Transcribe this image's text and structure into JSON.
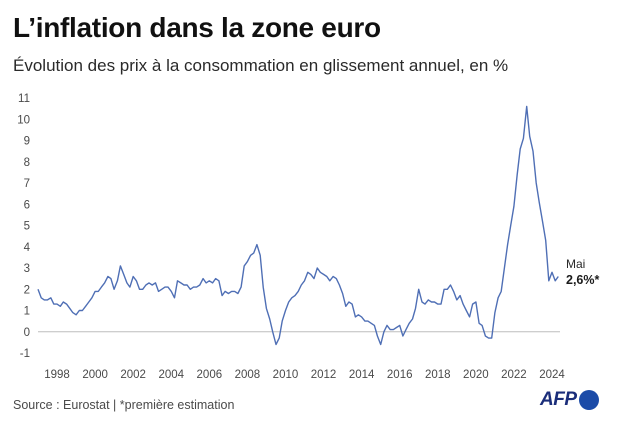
{
  "header": {
    "title": "L’inflation dans la zone euro",
    "subtitle": "Évolution des prix à la consommation en glissement annuel, en %"
  },
  "footer": {
    "source": "Source : Eurostat | *première estimation",
    "logo": "AFP"
  },
  "colors": {
    "line": "#4f6fb5",
    "zero_line": "#bdbdbd",
    "grid": "#ececec"
  },
  "chart_data": {
    "type": "line",
    "title": "L’inflation dans la zone euro",
    "subtitle": "Évolution des prix à la consommation en glissement annuel, en %",
    "xlim": [
      1997.0,
      2024.42
    ],
    "ylim": [
      -1,
      11
    ],
    "y_ticks": [
      -1,
      0,
      1,
      2,
      3,
      4,
      5,
      6,
      7,
      8,
      9,
      10,
      11
    ],
    "x_ticks": [
      "1998",
      "2000",
      "2002",
      "2004",
      "2006",
      "2008",
      "2010",
      "2012",
      "2014",
      "2016",
      "2018",
      "2020",
      "2022",
      "2024"
    ],
    "grid": false,
    "zero_line": true,
    "annotation": {
      "label": "Mai",
      "value_label": "2,6%*",
      "x": 2024.33,
      "y": 2.6
    },
    "series": [
      {
        "values": [
          [
            1997.0,
            2.0
          ],
          [
            1997.17,
            1.6
          ],
          [
            1997.33,
            1.5
          ],
          [
            1997.5,
            1.5
          ],
          [
            1997.67,
            1.6
          ],
          [
            1997.83,
            1.3
          ],
          [
            1998.0,
            1.3
          ],
          [
            1998.17,
            1.2
          ],
          [
            1998.33,
            1.4
          ],
          [
            1998.5,
            1.3
          ],
          [
            1998.67,
            1.1
          ],
          [
            1998.83,
            0.9
          ],
          [
            1999.0,
            0.8
          ],
          [
            1999.17,
            1.0
          ],
          [
            1999.33,
            1.0
          ],
          [
            1999.5,
            1.2
          ],
          [
            1999.67,
            1.4
          ],
          [
            1999.83,
            1.6
          ],
          [
            2000.0,
            1.9
          ],
          [
            2000.17,
            1.9
          ],
          [
            2000.33,
            2.1
          ],
          [
            2000.5,
            2.3
          ],
          [
            2000.67,
            2.6
          ],
          [
            2000.83,
            2.5
          ],
          [
            2001.0,
            2.0
          ],
          [
            2001.17,
            2.4
          ],
          [
            2001.33,
            3.1
          ],
          [
            2001.5,
            2.7
          ],
          [
            2001.67,
            2.3
          ],
          [
            2001.83,
            2.1
          ],
          [
            2002.0,
            2.6
          ],
          [
            2002.17,
            2.4
          ],
          [
            2002.33,
            2.0
          ],
          [
            2002.5,
            2.0
          ],
          [
            2002.67,
            2.2
          ],
          [
            2002.83,
            2.3
          ],
          [
            2003.0,
            2.2
          ],
          [
            2003.17,
            2.3
          ],
          [
            2003.33,
            1.9
          ],
          [
            2003.5,
            2.0
          ],
          [
            2003.67,
            2.1
          ],
          [
            2003.83,
            2.1
          ],
          [
            2004.0,
            1.9
          ],
          [
            2004.17,
            1.6
          ],
          [
            2004.33,
            2.4
          ],
          [
            2004.5,
            2.3
          ],
          [
            2004.67,
            2.2
          ],
          [
            2004.83,
            2.2
          ],
          [
            2005.0,
            2.0
          ],
          [
            2005.17,
            2.1
          ],
          [
            2005.33,
            2.1
          ],
          [
            2005.5,
            2.2
          ],
          [
            2005.67,
            2.5
          ],
          [
            2005.83,
            2.3
          ],
          [
            2006.0,
            2.4
          ],
          [
            2006.17,
            2.3
          ],
          [
            2006.33,
            2.5
          ],
          [
            2006.5,
            2.4
          ],
          [
            2006.67,
            1.7
          ],
          [
            2006.83,
            1.9
          ],
          [
            2007.0,
            1.8
          ],
          [
            2007.17,
            1.9
          ],
          [
            2007.33,
            1.9
          ],
          [
            2007.5,
            1.8
          ],
          [
            2007.67,
            2.1
          ],
          [
            2007.83,
            3.1
          ],
          [
            2008.0,
            3.3
          ],
          [
            2008.17,
            3.6
          ],
          [
            2008.33,
            3.7
          ],
          [
            2008.5,
            4.1
          ],
          [
            2008.67,
            3.6
          ],
          [
            2008.83,
            2.1
          ],
          [
            2009.0,
            1.1
          ],
          [
            2009.17,
            0.6
          ],
          [
            2009.33,
            0.0
          ],
          [
            2009.5,
            -0.6
          ],
          [
            2009.67,
            -0.3
          ],
          [
            2009.83,
            0.5
          ],
          [
            2010.0,
            1.0
          ],
          [
            2010.17,
            1.4
          ],
          [
            2010.33,
            1.6
          ],
          [
            2010.5,
            1.7
          ],
          [
            2010.67,
            1.9
          ],
          [
            2010.83,
            2.2
          ],
          [
            2011.0,
            2.4
          ],
          [
            2011.17,
            2.8
          ],
          [
            2011.33,
            2.7
          ],
          [
            2011.5,
            2.5
          ],
          [
            2011.67,
            3.0
          ],
          [
            2011.83,
            2.8
          ],
          [
            2012.0,
            2.7
          ],
          [
            2012.17,
            2.6
          ],
          [
            2012.33,
            2.4
          ],
          [
            2012.5,
            2.6
          ],
          [
            2012.67,
            2.5
          ],
          [
            2012.83,
            2.2
          ],
          [
            2013.0,
            1.8
          ],
          [
            2013.17,
            1.2
          ],
          [
            2013.33,
            1.4
          ],
          [
            2013.5,
            1.3
          ],
          [
            2013.67,
            0.7
          ],
          [
            2013.83,
            0.8
          ],
          [
            2014.0,
            0.7
          ],
          [
            2014.17,
            0.5
          ],
          [
            2014.33,
            0.5
          ],
          [
            2014.5,
            0.4
          ],
          [
            2014.67,
            0.3
          ],
          [
            2014.83,
            -0.2
          ],
          [
            2015.0,
            -0.6
          ],
          [
            2015.17,
            0.0
          ],
          [
            2015.33,
            0.3
          ],
          [
            2015.5,
            0.1
          ],
          [
            2015.67,
            0.1
          ],
          [
            2015.83,
            0.2
          ],
          [
            2016.0,
            0.3
          ],
          [
            2016.17,
            -0.2
          ],
          [
            2016.33,
            0.1
          ],
          [
            2016.5,
            0.4
          ],
          [
            2016.67,
            0.6
          ],
          [
            2016.83,
            1.1
          ],
          [
            2017.0,
            2.0
          ],
          [
            2017.17,
            1.4
          ],
          [
            2017.33,
            1.3
          ],
          [
            2017.5,
            1.5
          ],
          [
            2017.67,
            1.4
          ],
          [
            2017.83,
            1.4
          ],
          [
            2018.0,
            1.3
          ],
          [
            2018.17,
            1.3
          ],
          [
            2018.33,
            2.0
          ],
          [
            2018.5,
            2.0
          ],
          [
            2018.67,
            2.2
          ],
          [
            2018.83,
            1.9
          ],
          [
            2019.0,
            1.5
          ],
          [
            2019.17,
            1.7
          ],
          [
            2019.33,
            1.3
          ],
          [
            2019.5,
            1.0
          ],
          [
            2019.67,
            0.7
          ],
          [
            2019.83,
            1.3
          ],
          [
            2020.0,
            1.4
          ],
          [
            2020.17,
            0.4
          ],
          [
            2020.33,
            0.3
          ],
          [
            2020.5,
            -0.2
          ],
          [
            2020.67,
            -0.3
          ],
          [
            2020.83,
            -0.3
          ],
          [
            2021.0,
            0.9
          ],
          [
            2021.17,
            1.6
          ],
          [
            2021.33,
            1.9
          ],
          [
            2021.5,
            3.0
          ],
          [
            2021.67,
            4.1
          ],
          [
            2021.83,
            5.0
          ],
          [
            2022.0,
            5.9
          ],
          [
            2022.17,
            7.4
          ],
          [
            2022.33,
            8.6
          ],
          [
            2022.5,
            9.1
          ],
          [
            2022.67,
            10.6
          ],
          [
            2022.83,
            9.2
          ],
          [
            2023.0,
            8.5
          ],
          [
            2023.17,
            7.0
          ],
          [
            2023.33,
            6.1
          ],
          [
            2023.5,
            5.2
          ],
          [
            2023.67,
            4.3
          ],
          [
            2023.83,
            2.4
          ],
          [
            2024.0,
            2.8
          ],
          [
            2024.17,
            2.4
          ],
          [
            2024.33,
            2.6
          ]
        ]
      }
    ]
  }
}
